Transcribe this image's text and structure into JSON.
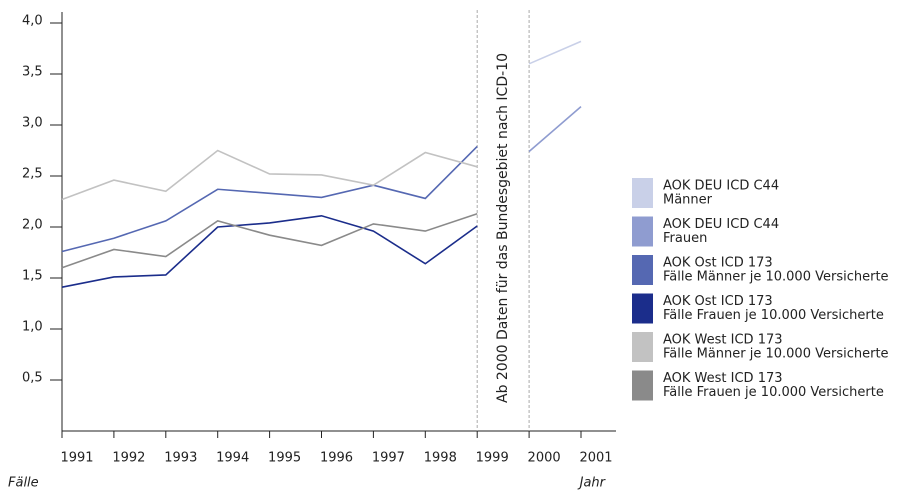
{
  "chart_data": {
    "type": "line",
    "x": [
      1991,
      1992,
      1993,
      1994,
      1995,
      1996,
      1997,
      1998,
      1999,
      2000,
      2001
    ],
    "xlim": [
      1991,
      2001
    ],
    "xticks": [
      1991,
      1992,
      1993,
      1994,
      1995,
      1996,
      1997,
      1998,
      1999,
      2000,
      2001
    ],
    "ylim": [
      0,
      4
    ],
    "yticks": [
      {
        "value": 0.5,
        "label": "0,5"
      },
      {
        "value": 1,
        "label": "1,0"
      },
      {
        "value": 1.5,
        "label": "1,5"
      },
      {
        "value": 2,
        "label": "2,0"
      },
      {
        "value": 2.5,
        "label": "2,5"
      },
      {
        "value": 3,
        "label": "3,0"
      },
      {
        "value": 3.5,
        "label": "3,5"
      },
      {
        "value": 4,
        "label": "4,0"
      }
    ],
    "ylabel": "Fälle",
    "xlabel": "Jahr",
    "annotation": {
      "text": "Ab 2000 Daten für das Bundesgebiet nach ICD-10",
      "x": [
        1999,
        2000
      ]
    },
    "series": [
      {
        "name": "AOK DEU ICD C44",
        "sub": "Männer",
        "color": "#c9d0e8",
        "values": [
          null,
          null,
          null,
          null,
          null,
          null,
          null,
          null,
          null,
          3.6,
          3.82
        ]
      },
      {
        "name": "AOK DEU ICD C44",
        "sub": "Frauen",
        "color": "#8f9cd0",
        "values": [
          null,
          null,
          null,
          null,
          null,
          null,
          null,
          null,
          null,
          2.74,
          3.18
        ]
      },
      {
        "name": "AOK Ost ICD 173",
        "sub": "Fälle Männer je 10.000 Versicherte",
        "color": "#5568b2",
        "values": [
          1.76,
          1.89,
          2.06,
          2.37,
          2.33,
          2.29,
          2.41,
          2.28,
          2.79,
          null,
          null
        ]
      },
      {
        "name": "AOK Ost ICD 173",
        "sub": "Fälle Frauen je 10.000 Versicherte",
        "color": "#1b2d8b",
        "values": [
          1.41,
          1.51,
          1.53,
          2.0,
          2.04,
          2.11,
          1.96,
          1.64,
          2.01,
          null,
          null
        ]
      },
      {
        "name": "AOK West ICD 173",
        "sub": "Fälle Männer je 10.000 Versicherte",
        "color": "#c2c2c2",
        "values": [
          2.27,
          2.46,
          2.35,
          2.75,
          2.52,
          2.51,
          2.41,
          2.73,
          2.59,
          null,
          null
        ]
      },
      {
        "name": "AOK West ICD 173",
        "sub": "Fälle Frauen je 10.000 Versicherte",
        "color": "#8a8a8a",
        "values": [
          1.6,
          1.78,
          1.71,
          2.06,
          1.92,
          1.82,
          2.03,
          1.96,
          2.13,
          null,
          null
        ]
      }
    ]
  }
}
